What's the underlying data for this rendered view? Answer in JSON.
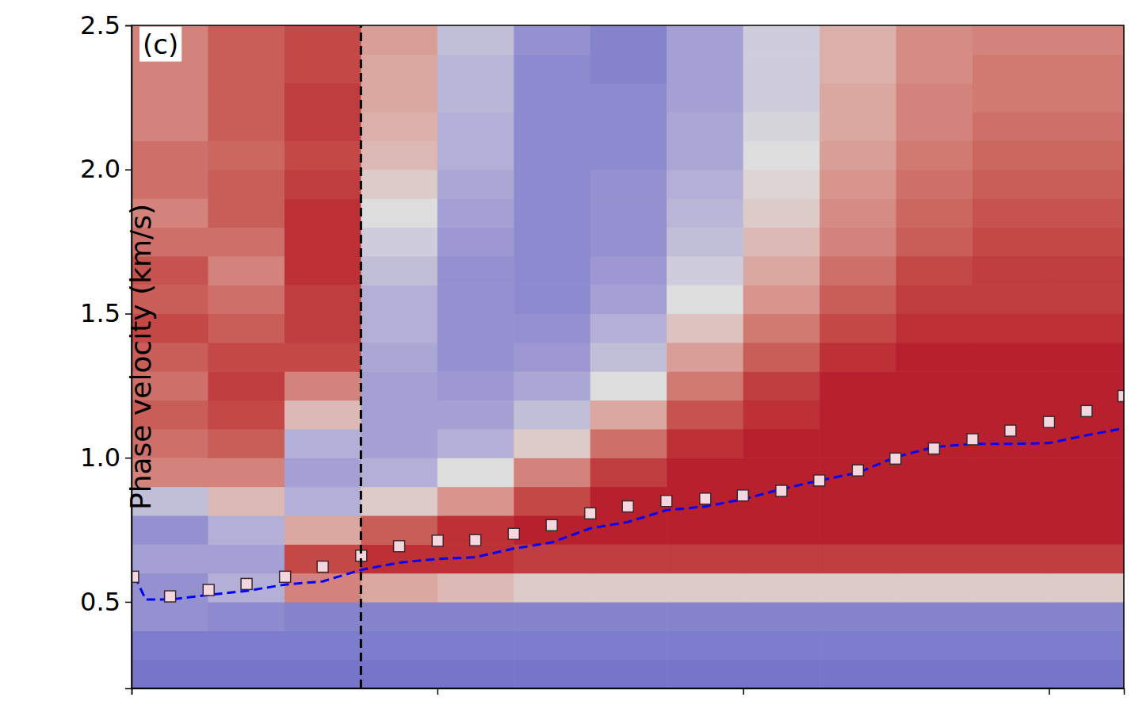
{
  "chart_data": {
    "type": "heatmap",
    "annotation": "(c)",
    "ylabel": "Phase velocity (km/s)",
    "xlim": [
      0,
      3.245
    ],
    "xticks": [
      0,
      1,
      2,
      3
    ],
    "ylim": [
      0.2,
      2.5
    ],
    "yticks": [
      0.5,
      {
        "value": 1,
        "label": "1.0"
      },
      1.5,
      {
        "value": 2,
        "label": "2.0"
      },
      2.5
    ],
    "tick_labels": "y",
    "grid": false,
    "heatmap": {
      "zlim": [
        -1,
        1
      ],
      "x": [
        0.125,
        0.375,
        0.625,
        0.875,
        1.125,
        1.375,
        1.625,
        1.875,
        2.125,
        2.375,
        2.625,
        2.875,
        3.125
      ],
      "y": [
        0.25,
        0.35,
        0.45,
        0.55,
        0.65,
        0.75,
        0.85,
        0.95,
        1.05,
        1.15,
        1.25,
        1.35,
        1.45,
        1.55,
        1.65,
        1.75,
        1.85,
        1.95,
        2.05,
        2.15,
        2.25,
        2.35,
        2.45
      ],
      "z": [
        [
          -0.7,
          -0.7,
          -0.7,
          -0.7,
          -0.7,
          -0.7,
          -0.7,
          -0.7,
          -0.7,
          -0.7,
          -0.7,
          -0.7,
          -0.7
        ],
        [
          -0.65,
          -0.65,
          -0.65,
          -0.65,
          -0.65,
          -0.65,
          -0.65,
          -0.65,
          -0.65,
          -0.65,
          -0.65,
          -0.65,
          -0.65
        ],
        [
          -0.5,
          -0.55,
          -0.6,
          -0.6,
          -0.6,
          -0.6,
          -0.6,
          -0.6,
          -0.6,
          -0.6,
          -0.6,
          -0.6,
          -0.6
        ],
        [
          -0.5,
          -0.3,
          0.5,
          0.3,
          0.2,
          0.1,
          0.1,
          0.1,
          0.1,
          0.1,
          0.1,
          0.1,
          0.1
        ],
        [
          -0.4,
          -0.4,
          0.8,
          0.9,
          0.9,
          0.85,
          0.85,
          0.85,
          0.85,
          0.85,
          0.85,
          0.85,
          0.85
        ],
        [
          -0.5,
          -0.3,
          0.3,
          0.7,
          0.9,
          0.95,
          0.95,
          0.95,
          0.95,
          0.95,
          0.95,
          0.95,
          0.95
        ],
        [
          -0.2,
          0.2,
          -0.3,
          0.1,
          0.4,
          0.8,
          0.95,
          0.95,
          0.95,
          0.95,
          0.95,
          0.95,
          0.95
        ],
        [
          0.5,
          0.5,
          -0.4,
          -0.3,
          0.0,
          0.5,
          0.85,
          0.95,
          0.95,
          0.95,
          0.95,
          0.95,
          0.95
        ],
        [
          0.6,
          0.7,
          -0.3,
          -0.4,
          -0.3,
          0.1,
          0.6,
          0.9,
          0.95,
          0.95,
          0.95,
          0.95,
          0.95
        ],
        [
          0.7,
          0.8,
          0.2,
          -0.4,
          -0.4,
          -0.2,
          0.3,
          0.75,
          0.9,
          0.95,
          0.95,
          0.95,
          0.95
        ],
        [
          0.6,
          0.85,
          0.5,
          -0.4,
          -0.45,
          -0.35,
          0.0,
          0.55,
          0.85,
          0.95,
          0.95,
          0.95,
          0.95
        ],
        [
          0.7,
          0.8,
          0.8,
          -0.35,
          -0.5,
          -0.45,
          -0.2,
          0.35,
          0.7,
          0.9,
          0.95,
          0.95,
          0.95
        ],
        [
          0.8,
          0.7,
          0.85,
          -0.3,
          -0.5,
          -0.5,
          -0.3,
          0.15,
          0.55,
          0.8,
          0.9,
          0.9,
          0.9
        ],
        [
          0.7,
          0.6,
          0.85,
          -0.3,
          -0.5,
          -0.55,
          -0.4,
          0.0,
          0.4,
          0.7,
          0.85,
          0.85,
          0.85
        ],
        [
          0.75,
          0.5,
          0.9,
          -0.2,
          -0.5,
          -0.55,
          -0.45,
          -0.1,
          0.3,
          0.6,
          0.8,
          0.85,
          0.85
        ],
        [
          0.6,
          0.6,
          0.9,
          -0.1,
          -0.45,
          -0.55,
          -0.5,
          -0.2,
          0.2,
          0.5,
          0.7,
          0.8,
          0.8
        ],
        [
          0.5,
          0.7,
          0.9,
          0.0,
          -0.4,
          -0.55,
          -0.5,
          -0.25,
          0.1,
          0.45,
          0.65,
          0.75,
          0.75
        ],
        [
          0.6,
          0.7,
          0.85,
          0.1,
          -0.35,
          -0.55,
          -0.5,
          -0.3,
          0.05,
          0.4,
          0.6,
          0.7,
          0.7
        ],
        [
          0.6,
          0.65,
          0.8,
          0.2,
          -0.3,
          -0.55,
          -0.55,
          -0.35,
          0.0,
          0.35,
          0.55,
          0.65,
          0.65
        ],
        [
          0.5,
          0.7,
          0.85,
          0.25,
          -0.3,
          -0.55,
          -0.55,
          -0.35,
          -0.05,
          0.3,
          0.5,
          0.6,
          0.6
        ],
        [
          0.5,
          0.7,
          0.85,
          0.3,
          -0.25,
          -0.55,
          -0.55,
          -0.4,
          -0.1,
          0.3,
          0.5,
          0.55,
          0.55
        ],
        [
          0.5,
          0.7,
          0.8,
          0.3,
          -0.25,
          -0.55,
          -0.6,
          -0.4,
          -0.1,
          0.25,
          0.45,
          0.55,
          0.55
        ],
        [
          0.5,
          0.7,
          0.8,
          0.35,
          -0.2,
          -0.5,
          -0.6,
          -0.4,
          -0.1,
          0.25,
          0.45,
          0.5,
          0.5
        ]
      ]
    },
    "series": [
      {
        "type": "line",
        "color": "#0000ff",
        "line_style": "dashed",
        "x": [
          0.01,
          0.046,
          0.126,
          0.252,
          0.376,
          0.502,
          0.625,
          0.751,
          0.875,
          1.0,
          1.124,
          1.25,
          1.374,
          1.5,
          1.623,
          1.749,
          1.876,
          2.0,
          2.125,
          2.249,
          2.375,
          2.498,
          2.624,
          2.75,
          2.874,
          3.0,
          3.123,
          3.245
        ],
        "values": [
          0.59,
          0.508,
          0.508,
          0.524,
          0.538,
          0.56,
          0.571,
          0.611,
          0.636,
          0.649,
          0.655,
          0.685,
          0.706,
          0.755,
          0.777,
          0.818,
          0.831,
          0.856,
          0.891,
          0.921,
          0.948,
          1.002,
          1.037,
          1.048,
          1.048,
          1.051,
          1.078,
          1.102
        ]
      },
      {
        "type": "scatter",
        "color": "#f4d6de",
        "marker": "square",
        "x": [
          0.005,
          0.126,
          0.252,
          0.376,
          0.502,
          0.625,
          0.751,
          0.875,
          1.001,
          1.124,
          1.25,
          1.374,
          1.5,
          1.623,
          1.749,
          1.876,
          1.999,
          2.125,
          2.249,
          2.375,
          2.498,
          2.624,
          2.75,
          2.874,
          3.0,
          3.123,
          3.244
        ],
        "values": [
          0.587,
          0.519,
          0.541,
          0.562,
          0.587,
          0.622,
          0.66,
          0.693,
          0.712,
          0.714,
          0.736,
          0.766,
          0.807,
          0.831,
          0.85,
          0.858,
          0.869,
          0.885,
          0.921,
          0.956,
          0.997,
          1.032,
          1.064,
          1.094,
          1.124,
          1.162,
          1.214
        ]
      },
      {
        "type": "line",
        "color": "#000000",
        "line_style": "dashed",
        "x": [
          0.75,
          0.75
        ],
        "values": [
          0.2,
          2.5
        ]
      }
    ]
  }
}
